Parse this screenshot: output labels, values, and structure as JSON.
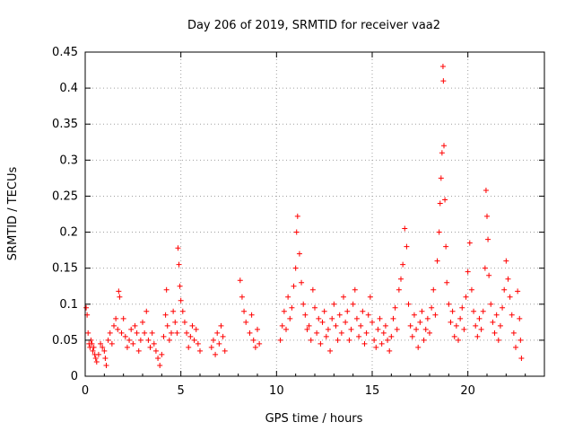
{
  "chart_data": {
    "type": "scatter",
    "title": "Day 206 of 2019, SRMTID for receiver vaa2",
    "xlabel": "GPS time / hours",
    "ylabel": "SRMTID / TECUs",
    "xlim": [
      0,
      24
    ],
    "ylim": [
      0,
      0.45
    ],
    "xticks": [
      "0",
      "5",
      "10",
      "15",
      "20"
    ],
    "yticks": [
      "0",
      "0.05",
      "0.1",
      "0.15",
      "0.2",
      "0.25",
      "0.3",
      "0.35",
      "0.4",
      "0.45"
    ],
    "grid": true,
    "marker": "+",
    "color": "#ff0000",
    "series": [
      {
        "name": "vaa2",
        "points": [
          [
            0.05,
            0.095
          ],
          [
            0.1,
            0.085
          ],
          [
            0.15,
            0.06
          ],
          [
            0.2,
            0.045
          ],
          [
            0.25,
            0.04
          ],
          [
            0.3,
            0.05
          ],
          [
            0.35,
            0.045
          ],
          [
            0.4,
            0.035
          ],
          [
            0.45,
            0.04
          ],
          [
            0.5,
            0.03
          ],
          [
            0.55,
            0.025
          ],
          [
            0.6,
            0.02
          ],
          [
            0.7,
            0.03
          ],
          [
            0.8,
            0.045
          ],
          [
            0.9,
            0.04
          ],
          [
            1.0,
            0.035
          ],
          [
            1.05,
            0.025
          ],
          [
            1.1,
            0.015
          ],
          [
            1.2,
            0.05
          ],
          [
            1.3,
            0.06
          ],
          [
            1.4,
            0.045
          ],
          [
            1.5,
            0.07
          ],
          [
            1.6,
            0.08
          ],
          [
            1.7,
            0.065
          ],
          [
            1.75,
            0.118
          ],
          [
            1.8,
            0.11
          ],
          [
            1.9,
            0.06
          ],
          [
            2.0,
            0.08
          ],
          [
            2.1,
            0.055
          ],
          [
            2.2,
            0.04
          ],
          [
            2.3,
            0.05
          ],
          [
            2.4,
            0.065
          ],
          [
            2.5,
            0.045
          ],
          [
            2.6,
            0.07
          ],
          [
            2.7,
            0.06
          ],
          [
            2.8,
            0.035
          ],
          [
            2.9,
            0.05
          ],
          [
            3.0,
            0.075
          ],
          [
            3.1,
            0.06
          ],
          [
            3.2,
            0.09
          ],
          [
            3.3,
            0.05
          ],
          [
            3.4,
            0.04
          ],
          [
            3.5,
            0.06
          ],
          [
            3.6,
            0.045
          ],
          [
            3.7,
            0.035
          ],
          [
            3.8,
            0.025
          ],
          [
            3.9,
            0.015
          ],
          [
            4.0,
            0.03
          ],
          [
            4.1,
            0.055
          ],
          [
            4.2,
            0.085
          ],
          [
            4.25,
            0.12
          ],
          [
            4.3,
            0.07
          ],
          [
            4.4,
            0.05
          ],
          [
            4.5,
            0.06
          ],
          [
            4.6,
            0.09
          ],
          [
            4.7,
            0.075
          ],
          [
            4.8,
            0.06
          ],
          [
            4.85,
            0.178
          ],
          [
            4.9,
            0.155
          ],
          [
            4.95,
            0.125
          ],
          [
            5.0,
            0.105
          ],
          [
            5.1,
            0.09
          ],
          [
            5.2,
            0.075
          ],
          [
            5.3,
            0.06
          ],
          [
            5.4,
            0.04
          ],
          [
            5.5,
            0.055
          ],
          [
            5.6,
            0.07
          ],
          [
            5.7,
            0.05
          ],
          [
            5.8,
            0.065
          ],
          [
            5.9,
            0.045
          ],
          [
            6.0,
            0.035
          ],
          [
            6.6,
            0.04
          ],
          [
            6.7,
            0.05
          ],
          [
            6.8,
            0.03
          ],
          [
            6.9,
            0.06
          ],
          [
            7.0,
            0.045
          ],
          [
            7.1,
            0.07
          ],
          [
            7.2,
            0.055
          ],
          [
            7.3,
            0.035
          ],
          [
            8.1,
            0.133
          ],
          [
            8.2,
            0.11
          ],
          [
            8.3,
            0.09
          ],
          [
            8.4,
            0.075
          ],
          [
            8.6,
            0.06
          ],
          [
            8.7,
            0.085
          ],
          [
            8.8,
            0.05
          ],
          [
            8.9,
            0.04
          ],
          [
            9.0,
            0.065
          ],
          [
            9.1,
            0.045
          ],
          [
            10.2,
            0.05
          ],
          [
            10.3,
            0.07
          ],
          [
            10.4,
            0.09
          ],
          [
            10.5,
            0.065
          ],
          [
            10.6,
            0.11
          ],
          [
            10.7,
            0.08
          ],
          [
            10.8,
            0.095
          ],
          [
            10.9,
            0.125
          ],
          [
            11.0,
            0.15
          ],
          [
            11.05,
            0.2
          ],
          [
            11.1,
            0.222
          ],
          [
            11.2,
            0.17
          ],
          [
            11.3,
            0.13
          ],
          [
            11.4,
            0.1
          ],
          [
            11.5,
            0.085
          ],
          [
            11.6,
            0.065
          ],
          [
            11.7,
            0.07
          ],
          [
            11.8,
            0.05
          ],
          [
            11.9,
            0.12
          ],
          [
            12.0,
            0.095
          ],
          [
            12.1,
            0.06
          ],
          [
            12.2,
            0.08
          ],
          [
            12.3,
            0.045
          ],
          [
            12.4,
            0.075
          ],
          [
            12.5,
            0.09
          ],
          [
            12.6,
            0.055
          ],
          [
            12.7,
            0.065
          ],
          [
            12.8,
            0.035
          ],
          [
            12.9,
            0.08
          ],
          [
            13.0,
            0.1
          ],
          [
            13.1,
            0.07
          ],
          [
            13.2,
            0.05
          ],
          [
            13.3,
            0.085
          ],
          [
            13.4,
            0.06
          ],
          [
            13.5,
            0.11
          ],
          [
            13.6,
            0.075
          ],
          [
            13.7,
            0.09
          ],
          [
            13.8,
            0.05
          ],
          [
            13.9,
            0.065
          ],
          [
            14.0,
            0.1
          ],
          [
            14.1,
            0.12
          ],
          [
            14.2,
            0.08
          ],
          [
            14.3,
            0.055
          ],
          [
            14.4,
            0.07
          ],
          [
            14.5,
            0.09
          ],
          [
            14.6,
            0.045
          ],
          [
            14.7,
            0.06
          ],
          [
            14.8,
            0.085
          ],
          [
            14.9,
            0.11
          ],
          [
            15.0,
            0.075
          ],
          [
            15.1,
            0.05
          ],
          [
            15.2,
            0.04
          ],
          [
            15.3,
            0.065
          ],
          [
            15.4,
            0.08
          ],
          [
            15.5,
            0.045
          ],
          [
            15.6,
            0.06
          ],
          [
            15.7,
            0.07
          ],
          [
            15.8,
            0.05
          ],
          [
            15.9,
            0.035
          ],
          [
            16.0,
            0.055
          ],
          [
            16.1,
            0.08
          ],
          [
            16.2,
            0.095
          ],
          [
            16.3,
            0.065
          ],
          [
            16.4,
            0.12
          ],
          [
            16.5,
            0.135
          ],
          [
            16.6,
            0.155
          ],
          [
            16.7,
            0.205
          ],
          [
            16.8,
            0.18
          ],
          [
            16.9,
            0.1
          ],
          [
            17.0,
            0.07
          ],
          [
            17.1,
            0.055
          ],
          [
            17.2,
            0.085
          ],
          [
            17.3,
            0.065
          ],
          [
            17.4,
            0.04
          ],
          [
            17.5,
            0.075
          ],
          [
            17.6,
            0.09
          ],
          [
            17.7,
            0.05
          ],
          [
            17.8,
            0.065
          ],
          [
            17.9,
            0.08
          ],
          [
            18.0,
            0.06
          ],
          [
            18.1,
            0.095
          ],
          [
            18.2,
            0.12
          ],
          [
            18.3,
            0.085
          ],
          [
            18.4,
            0.16
          ],
          [
            18.5,
            0.2
          ],
          [
            18.55,
            0.24
          ],
          [
            18.6,
            0.275
          ],
          [
            18.65,
            0.31
          ],
          [
            18.7,
            0.43
          ],
          [
            18.72,
            0.41
          ],
          [
            18.75,
            0.32
          ],
          [
            18.8,
            0.245
          ],
          [
            18.85,
            0.18
          ],
          [
            18.9,
            0.13
          ],
          [
            19.0,
            0.1
          ],
          [
            19.1,
            0.075
          ],
          [
            19.2,
            0.09
          ],
          [
            19.3,
            0.055
          ],
          [
            19.4,
            0.07
          ],
          [
            19.5,
            0.05
          ],
          [
            19.6,
            0.08
          ],
          [
            19.7,
            0.095
          ],
          [
            19.8,
            0.065
          ],
          [
            19.9,
            0.11
          ],
          [
            20.0,
            0.145
          ],
          [
            20.1,
            0.185
          ],
          [
            20.2,
            0.12
          ],
          [
            20.3,
            0.09
          ],
          [
            20.4,
            0.07
          ],
          [
            20.5,
            0.055
          ],
          [
            20.6,
            0.08
          ],
          [
            20.7,
            0.065
          ],
          [
            20.8,
            0.09
          ],
          [
            20.9,
            0.15
          ],
          [
            20.95,
            0.258
          ],
          [
            21.0,
            0.222
          ],
          [
            21.05,
            0.19
          ],
          [
            21.1,
            0.14
          ],
          [
            21.2,
            0.1
          ],
          [
            21.3,
            0.075
          ],
          [
            21.4,
            0.06
          ],
          [
            21.5,
            0.085
          ],
          [
            21.6,
            0.05
          ],
          [
            21.7,
            0.07
          ],
          [
            21.8,
            0.095
          ],
          [
            21.9,
            0.12
          ],
          [
            22.0,
            0.16
          ],
          [
            22.1,
            0.135
          ],
          [
            22.2,
            0.11
          ],
          [
            22.3,
            0.085
          ],
          [
            22.4,
            0.06
          ],
          [
            22.5,
            0.04
          ],
          [
            22.6,
            0.118
          ],
          [
            22.7,
            0.08
          ],
          [
            22.75,
            0.05
          ],
          [
            22.8,
            0.025
          ]
        ]
      }
    ]
  }
}
